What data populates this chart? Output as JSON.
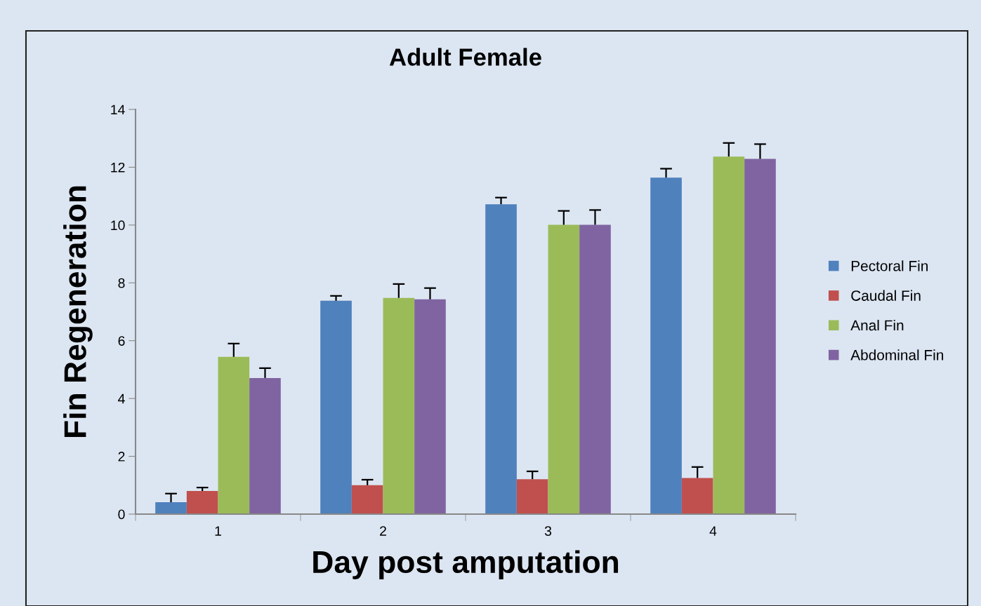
{
  "chart_data": {
    "type": "bar",
    "title": "Adult Female",
    "xlabel": "Day post amputation",
    "ylabel": "Fin Regeneration",
    "categories": [
      "1",
      "2",
      "3",
      "4"
    ],
    "series": [
      {
        "name": "Pectoral Fin",
        "color": "#4f81bd",
        "values": [
          0.41,
          7.38,
          10.72,
          11.64
        ],
        "errors": [
          [
            0.41,
            0.71
          ],
          [
            7.38,
            7.55
          ],
          [
            10.72,
            10.95
          ],
          [
            11.64,
            11.95
          ]
        ]
      },
      {
        "name": "Caudal Fin",
        "color": "#c0504d",
        "values": [
          0.8,
          1.0,
          1.21,
          1.25
        ],
        "errors": [
          [
            0.8,
            0.92
          ],
          [
            1.0,
            1.19
          ],
          [
            1.21,
            1.48
          ],
          [
            1.25,
            1.63
          ]
        ]
      },
      {
        "name": "Anal Fin",
        "color": "#9bbb59",
        "values": [
          5.44,
          7.48,
          10.01,
          12.37
        ],
        "errors": [
          [
            5.44,
            5.9
          ],
          [
            7.48,
            7.96
          ],
          [
            10.01,
            10.49
          ],
          [
            12.37,
            12.84
          ]
        ]
      },
      {
        "name": "Abdominal Fin",
        "color": "#8064a2",
        "values": [
          4.71,
          7.43,
          10.01,
          12.29
        ],
        "errors": [
          [
            4.71,
            5.05
          ],
          [
            7.43,
            7.82
          ],
          [
            10.01,
            10.52
          ],
          [
            12.29,
            12.8
          ]
        ]
      }
    ],
    "ylim": [
      0,
      14
    ],
    "yticks": [
      0,
      2,
      4,
      6,
      8,
      10,
      12,
      14
    ],
    "grid": false,
    "legend": "right"
  }
}
